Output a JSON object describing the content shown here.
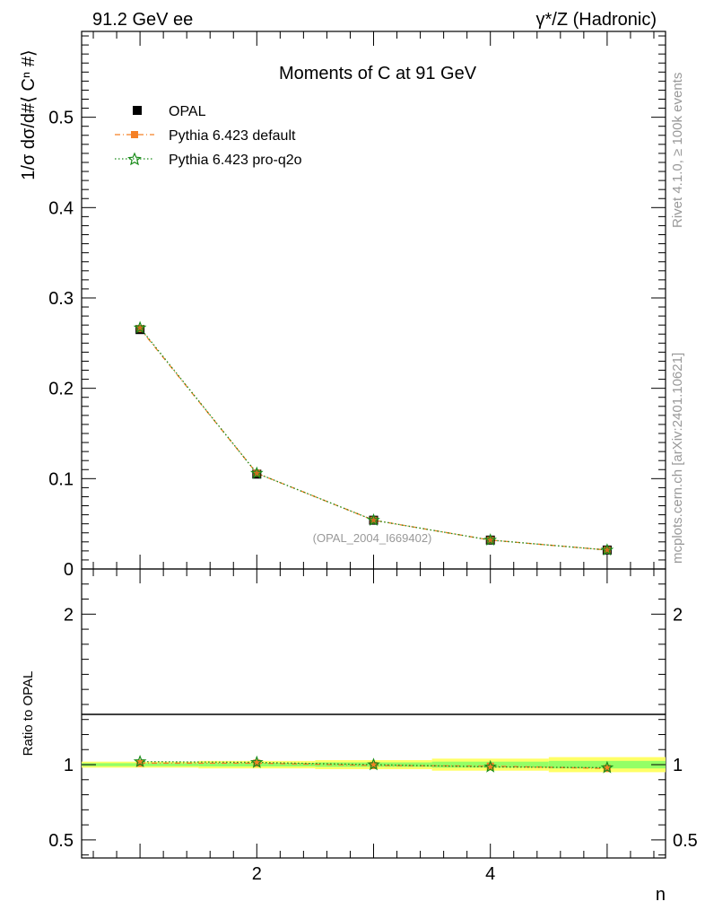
{
  "header": {
    "left": "91.2 GeV ee",
    "right": "γ*/Z (Hadronic)"
  },
  "side_labels": {
    "rivet": "Rivet 4.1.0, ≥ 100k events",
    "mcplots": "mcplots.cern.ch [arXiv:2401.10621]"
  },
  "colors": {
    "opal": "#000000",
    "pythia_default": "#f58025",
    "pythia_pro": "#1a8c1a",
    "band_yellow": "#ffff66",
    "band_green": "#66ff66"
  },
  "chart_data": [
    {
      "type": "line",
      "title": "Moments of C at 91 GeV",
      "ylabel": "1/σ  dσ/d#⟨ Cⁿ #⟩",
      "xlabel": "n",
      "watermark": "(OPAL_2004_I669402)",
      "xlim": [
        0.5,
        5.5
      ],
      "ylim": [
        0,
        0.595
      ],
      "yticks": [
        0,
        0.1,
        0.2,
        0.3,
        0.4,
        0.5
      ],
      "ytick_labels": [
        "0",
        "0.1",
        "0.2",
        "0.3",
        "0.4",
        "0.5"
      ],
      "x": [
        1,
        2,
        3,
        4,
        5
      ],
      "series": [
        {
          "name": "OPAL",
          "style": "data",
          "values": [
            0.265,
            0.105,
            0.054,
            0.032,
            0.021
          ]
        },
        {
          "name": "Pythia 6.423 default",
          "style": "dashdot",
          "values": [
            0.266,
            0.106,
            0.054,
            0.032,
            0.021
          ]
        },
        {
          "name": "Pythia 6.423 pro-q2o",
          "style": "dotted",
          "values": [
            0.267,
            0.106,
            0.054,
            0.032,
            0.021
          ]
        }
      ]
    },
    {
      "type": "line",
      "ylabel": "Ratio to OPAL",
      "xlabel": "n",
      "xlim": [
        0.5,
        5.5
      ],
      "ylim": [
        0.38,
        2.3
      ],
      "yticks": [
        0.5,
        1,
        2
      ],
      "ytick_labels": [
        "0.5",
        "1",
        "2"
      ],
      "xticks": [
        2,
        4
      ],
      "xtick_labels": [
        "2",
        "4"
      ],
      "x": [
        1,
        2,
        3,
        4,
        5
      ],
      "bands": {
        "yellow_halfwidth": [
          0.02,
          0.025,
          0.03,
          0.04,
          0.05
        ],
        "green_halfwidth": [
          0.01,
          0.012,
          0.015,
          0.02,
          0.025
        ]
      },
      "series": [
        {
          "name": "Pythia 6.423 default",
          "style": "dashdot",
          "values": [
            1.01,
            1.01,
            0.995,
            0.99,
            0.975
          ]
        },
        {
          "name": "Pythia 6.423 pro-q2o",
          "style": "dotted",
          "values": [
            1.02,
            1.015,
            1.0,
            0.985,
            0.98
          ]
        }
      ]
    }
  ]
}
